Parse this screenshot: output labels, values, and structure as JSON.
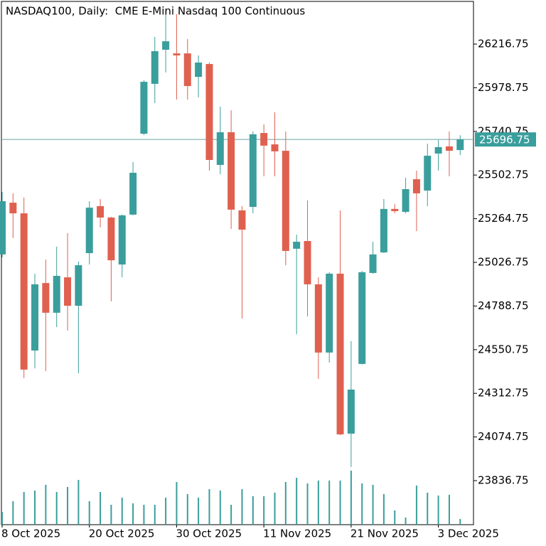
{
  "chart_data": {
    "type": "candlestick",
    "title": "NASDAQ100, Daily:  CME E-Mini Nasdaq 100 Continuous",
    "categories": [
      "8 Oct 2025",
      null,
      null,
      null,
      null,
      null,
      null,
      null,
      "20 Oct 2025",
      null,
      null,
      null,
      null,
      null,
      null,
      null,
      "30 Oct 2025",
      null,
      null,
      null,
      null,
      null,
      null,
      null,
      "11 Nov 2025",
      null,
      null,
      null,
      null,
      null,
      null,
      null,
      "21 Nov 2025",
      null,
      null,
      null,
      null,
      null,
      null,
      null,
      "3 Dec 2025",
      null,
      null
    ],
    "open": [
      25070,
      25352,
      25294,
      24546,
      24914,
      24752,
      24945,
      24790,
      25077,
      25333,
      25271,
      25015,
      25287,
      25728,
      26000,
      26186,
      26166,
      26166,
      26038,
      26108,
      25558,
      25736,
      25310,
      25329,
      25732,
      25670,
      25635,
      25101,
      25143,
      24907,
      24535,
      24965,
      24093,
      24473,
      24969,
      25081,
      25318,
      25302,
      25480,
      25418,
      25620,
      25659,
      25639
    ],
    "high": [
      25411,
      25403,
      25380,
      24965,
      25042,
      25112,
      25186,
      25031,
      25360,
      25372,
      25275,
      25287,
      25574,
      26019,
      26256,
      26399,
      26380,
      26244,
      26155,
      26116,
      25876,
      25856,
      25333,
      25740,
      25779,
      25845,
      25740,
      25178,
      25364,
      24945,
      24973,
      25310,
      24597,
      24980,
      25139,
      25372,
      25345,
      25488,
      25527,
      25674,
      25694,
      25740,
      25720
    ],
    "low": [
      25054,
      25159,
      24395,
      24449,
      24434,
      24674,
      24655,
      24422,
      25015,
      25217,
      24814,
      24945,
      25283,
      25721,
      25895,
      26062,
      25914,
      25914,
      25926,
      25527,
      25507,
      25209,
      24721,
      25294,
      25496,
      25496,
      25011,
      24635,
      24732,
      24391,
      24480,
      24085,
      23911,
      24470,
      24965,
      25077,
      25294,
      25294,
      25197,
      25333,
      25527,
      25496,
      25612
    ],
    "close": [
      25360,
      25294,
      24442,
      24907,
      24752,
      24953,
      24790,
      25011,
      25325,
      25271,
      25038,
      25283,
      25515,
      26011,
      26178,
      26232,
      26155,
      25988,
      26116,
      25585,
      25736,
      25314,
      25205,
      25725,
      25663,
      25632,
      25089,
      25139,
      24907,
      24535,
      24965,
      24089,
      24333,
      24973,
      25070,
      25318,
      25306,
      25426,
      25403,
      25608,
      25655,
      25635,
      25696.75
    ],
    "volume": [
      18,
      33,
      46,
      48,
      56,
      46,
      53,
      63,
      33,
      46,
      28,
      38,
      30,
      28,
      28,
      38,
      60,
      43,
      38,
      50,
      48,
      28,
      50,
      40,
      40,
      45,
      60,
      66,
      58,
      62,
      62,
      62,
      76,
      58,
      56,
      43,
      20,
      10,
      55,
      45,
      41,
      42,
      8
    ],
    "up_color": "#3a9e9c",
    "down_color": "#e0604f",
    "ylim": [
      23596.6,
      26449.3
    ],
    "yticks": [
      23836.75,
      24074.75,
      24312.75,
      24550.75,
      24788.75,
      25026.75,
      25264.75,
      25502.75,
      25740.75,
      25978.75,
      26216.75
    ],
    "last_price": 25696.75
  }
}
